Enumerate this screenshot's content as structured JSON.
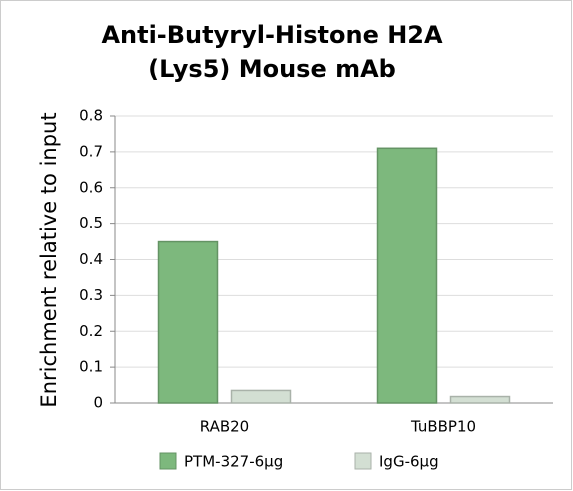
{
  "chart_data": {
    "type": "bar",
    "title": [
      "Anti-Butyryl-Histone H2A",
      "(Lys5) Mouse mAb"
    ],
    "y_label": "Enrichment relative to input",
    "categories": [
      "RAB20",
      "TuBBP10"
    ],
    "series": [
      {
        "name": "PTM-327-6μg",
        "color": "#7db87d",
        "values": [
          0.45,
          0.71
        ]
      },
      {
        "name": "IgG-6μg",
        "color": "#d3dfd3",
        "values": [
          0.035,
          0.018
        ]
      }
    ],
    "ylim": [
      0,
      0.8
    ],
    "yticks": [
      0,
      0.1,
      0.2,
      0.3,
      0.4,
      0.5,
      0.6,
      0.7,
      0.8
    ],
    "grid": true
  }
}
